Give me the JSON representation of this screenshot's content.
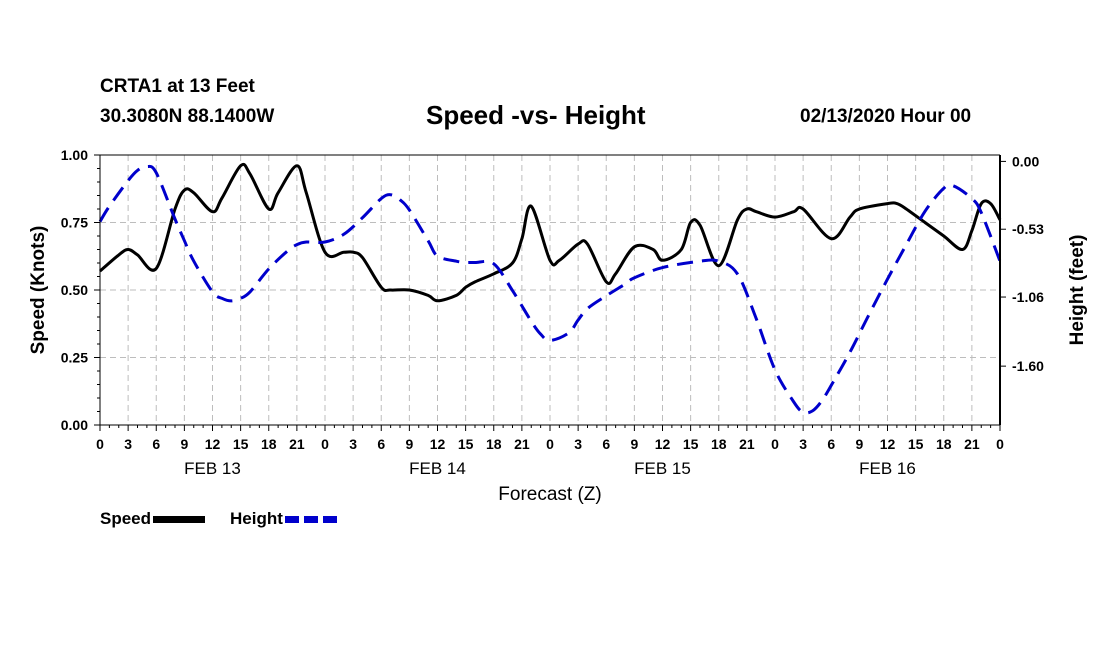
{
  "header": {
    "station": "CRTA1 at 13 Feet",
    "coords": "30.3080N 88.1400W",
    "title": "Speed -vs- Height",
    "run": "02/13/2020 Hour 00"
  },
  "legend": {
    "speed": "Speed",
    "height": "Height"
  },
  "colors": {
    "speed": "#000000",
    "height": "#0000cc",
    "grid": "#bdbdbd"
  },
  "chart_data": {
    "type": "line",
    "title": "Speed -vs- Height",
    "xlabel": "Forecast (Z)",
    "ylabel_left": "Speed (Knots)",
    "ylabel_right": "Height (feet)",
    "xlim": [
      0,
      96
    ],
    "ylim_left": [
      0,
      1
    ],
    "ylim_right": [
      -2.06,
      0.05
    ],
    "left_ticks": [
      {
        "value": 0,
        "label": "0.00"
      },
      {
        "value": 0.25,
        "label": "0.25"
      },
      {
        "value": 0.5,
        "label": "0.50"
      },
      {
        "value": 0.75,
        "label": "0.75"
      },
      {
        "value": 1,
        "label": "1.00"
      }
    ],
    "right_ticks": [
      {
        "value": 0,
        "label": "0.00"
      },
      {
        "value": -0.53,
        "label": "-0.53"
      },
      {
        "value": -1.06,
        "label": "-1.06"
      },
      {
        "value": -1.6,
        "label": "-1.60"
      }
    ],
    "x_tick_labels": [
      "0",
      "3",
      "6",
      "9",
      "12",
      "15",
      "18",
      "21",
      "0",
      "3",
      "6",
      "9",
      "12",
      "15",
      "18",
      "21",
      "0",
      "3",
      "6",
      "9",
      "12",
      "15",
      "18",
      "21",
      "0",
      "3",
      "6",
      "9",
      "12",
      "15",
      "18",
      "21",
      "0"
    ],
    "day_labels": [
      {
        "hour": 12,
        "label": "FEB 13"
      },
      {
        "hour": 36,
        "label": "FEB 14"
      },
      {
        "hour": 60,
        "label": "FEB 15"
      },
      {
        "hour": 84,
        "label": "FEB 16"
      }
    ],
    "series": [
      {
        "name": "Speed",
        "axis": "left",
        "style": "solid",
        "x": [
          0,
          2,
          3,
          4,
          6,
          8,
          9,
          10,
          12,
          13,
          15,
          16,
          18,
          19,
          21,
          22,
          24,
          26,
          27,
          28,
          30,
          31,
          33,
          35,
          36,
          38,
          39,
          40,
          42,
          44,
          45,
          46,
          48,
          49,
          51,
          52,
          54,
          55,
          57,
          59,
          60,
          62,
          63,
          64,
          66,
          68,
          69,
          70,
          72,
          74,
          75,
          78,
          80,
          81,
          84,
          85,
          86,
          88,
          90,
          92,
          93,
          94,
          95,
          96
        ],
        "y": [
          0.57,
          0.63,
          0.65,
          0.63,
          0.58,
          0.8,
          0.87,
          0.86,
          0.79,
          0.84,
          0.96,
          0.93,
          0.8,
          0.86,
          0.96,
          0.86,
          0.64,
          0.64,
          0.64,
          0.62,
          0.51,
          0.5,
          0.5,
          0.48,
          0.46,
          0.48,
          0.51,
          0.53,
          0.56,
          0.6,
          0.69,
          0.81,
          0.61,
          0.61,
          0.67,
          0.67,
          0.53,
          0.56,
          0.66,
          0.65,
          0.61,
          0.65,
          0.75,
          0.74,
          0.59,
          0.76,
          0.8,
          0.79,
          0.77,
          0.79,
          0.8,
          0.69,
          0.77,
          0.8,
          0.82,
          0.82,
          0.8,
          0.75,
          0.7,
          0.65,
          0.72,
          0.82,
          0.82,
          0.76
        ]
      },
      {
        "name": "Height",
        "axis": "right",
        "style": "dashed",
        "x": [
          0,
          1,
          3,
          4,
          5,
          6,
          8,
          9,
          10,
          12,
          13,
          14,
          15,
          16,
          18,
          20,
          21,
          22,
          24,
          26,
          28,
          30,
          31,
          32,
          33,
          35,
          36,
          38,
          39,
          40,
          42,
          44,
          46,
          47,
          48,
          50,
          51,
          52,
          54,
          56,
          57,
          60,
          64,
          66,
          68,
          70,
          72,
          74,
          75,
          76,
          77,
          78,
          80,
          82,
          84,
          86,
          88,
          90,
          91,
          93,
          94,
          96
        ],
        "y": [
          -0.47,
          -0.35,
          -0.15,
          -0.07,
          -0.04,
          -0.09,
          -0.45,
          -0.62,
          -0.78,
          -1.02,
          -1.07,
          -1.09,
          -1.07,
          -1.02,
          -0.84,
          -0.7,
          -0.65,
          -0.63,
          -0.63,
          -0.57,
          -0.44,
          -0.29,
          -0.26,
          -0.3,
          -0.38,
          -0.62,
          -0.74,
          -0.78,
          -0.79,
          -0.79,
          -0.8,
          -1.01,
          -1.25,
          -1.35,
          -1.4,
          -1.34,
          -1.24,
          -1.15,
          -1.05,
          -0.96,
          -0.91,
          -0.83,
          -0.78,
          -0.78,
          -0.88,
          -1.23,
          -1.63,
          -1.88,
          -1.96,
          -1.95,
          -1.87,
          -1.75,
          -1.49,
          -1.2,
          -0.92,
          -0.65,
          -0.39,
          -0.21,
          -0.19,
          -0.29,
          -0.4,
          -0.78
        ]
      }
    ]
  }
}
